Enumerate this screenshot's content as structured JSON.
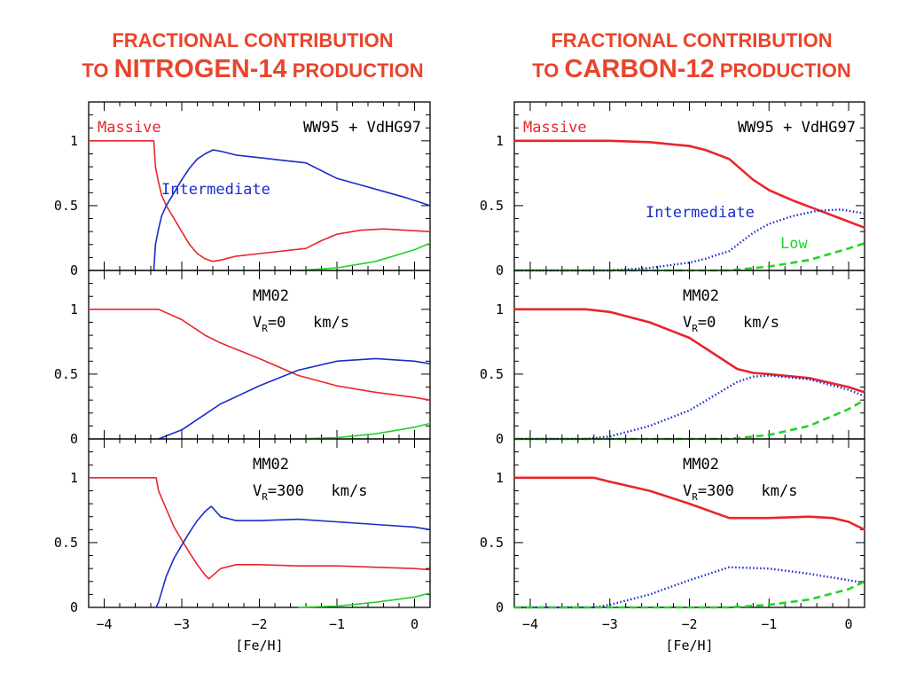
{
  "titles": [
    {
      "line1": "FRACTIONAL CONTRIBUTION",
      "line2_prefix": "TO ",
      "line2_emph": "NITROGEN-14",
      "line2_suffix": " PRODUCTION"
    },
    {
      "line1": "FRACTIONAL CONTRIBUTION",
      "line2_prefix": "TO ",
      "line2_emph": "CARBON-12",
      "line2_suffix": " PRODUCTION"
    }
  ],
  "colors": {
    "massive": "#e8262c",
    "intermediate": "#1a2cc8",
    "low": "#22d322",
    "title": "#e8452c"
  },
  "chart_data": [
    {
      "type": "line",
      "column": "N14",
      "row": 0,
      "xlabel": "[Fe/H]",
      "xlim": [
        -4.2,
        0.2
      ],
      "ylim": [
        0,
        1.3
      ],
      "xticks": [
        -4,
        -3,
        -2,
        -1,
        0
      ],
      "yticks": [
        0,
        0.5,
        1
      ],
      "model_label": "WW95 + VdHG97",
      "model_sub": "",
      "model_unit": "",
      "series": [
        {
          "name": "Massive",
          "label": "Massive",
          "label_pos": "top-left",
          "style": "solid",
          "x": [
            -4.2,
            -3.36,
            -3.34,
            -3.3,
            -3.26,
            -3.2,
            -3.1,
            -3.0,
            -2.9,
            -2.8,
            -2.7,
            -2.6,
            -2.5,
            -2.3,
            -2.0,
            -1.7,
            -1.4,
            -1.2,
            -1.0,
            -0.7,
            -0.4,
            -0.1,
            0.2
          ],
          "y": [
            1.0,
            1.0,
            0.8,
            0.68,
            0.58,
            0.5,
            0.4,
            0.3,
            0.2,
            0.13,
            0.09,
            0.07,
            0.08,
            0.11,
            0.13,
            0.15,
            0.17,
            0.23,
            0.28,
            0.31,
            0.32,
            0.31,
            0.3
          ]
        },
        {
          "name": "Intermediate",
          "label": "Intermediate",
          "label_pos": "mid",
          "style": "solid",
          "x": [
            -3.36,
            -3.34,
            -3.3,
            -3.26,
            -3.2,
            -3.1,
            -3.0,
            -2.9,
            -2.8,
            -2.7,
            -2.6,
            -2.5,
            -2.3,
            -2.0,
            -1.7,
            -1.4,
            -1.2,
            -1.0,
            -0.7,
            -0.4,
            -0.1,
            0.2
          ],
          "y": [
            0.0,
            0.2,
            0.32,
            0.42,
            0.5,
            0.6,
            0.7,
            0.79,
            0.86,
            0.9,
            0.93,
            0.92,
            0.89,
            0.87,
            0.85,
            0.83,
            0.77,
            0.71,
            0.66,
            0.61,
            0.56,
            0.5
          ]
        },
        {
          "name": "Low",
          "label": "",
          "label_pos": "",
          "style": "solid",
          "x": [
            -1.5,
            -1.0,
            -0.5,
            0.0,
            0.2
          ],
          "y": [
            0.0,
            0.02,
            0.07,
            0.16,
            0.21
          ]
        }
      ]
    },
    {
      "type": "line",
      "column": "N14",
      "row": 1,
      "xlabel": "[Fe/H]",
      "xlim": [
        -4.2,
        0.2
      ],
      "ylim": [
        0,
        1.3
      ],
      "xticks": [
        -4,
        -3,
        -2,
        -1,
        0
      ],
      "yticks": [
        0,
        0.5,
        1
      ],
      "model_label": "MM02",
      "model_sub": "R",
      "model_unit": "=0   km/s",
      "series": [
        {
          "name": "Massive",
          "label": "",
          "label_pos": "",
          "style": "solid",
          "x": [
            -4.2,
            -3.3,
            -3.0,
            -2.7,
            -2.5,
            -2.0,
            -1.5,
            -1.0,
            -0.5,
            0.0,
            0.2
          ],
          "y": [
            1.0,
            1.0,
            0.92,
            0.8,
            0.74,
            0.62,
            0.49,
            0.41,
            0.36,
            0.32,
            0.3
          ]
        },
        {
          "name": "Intermediate",
          "label": "",
          "label_pos": "",
          "style": "solid",
          "x": [
            -3.3,
            -3.0,
            -2.7,
            -2.5,
            -2.0,
            -1.5,
            -1.0,
            -0.5,
            0.0,
            0.2
          ],
          "y": [
            0.0,
            0.07,
            0.19,
            0.27,
            0.41,
            0.53,
            0.6,
            0.62,
            0.6,
            0.58
          ]
        },
        {
          "name": "Low",
          "label": "",
          "label_pos": "",
          "style": "solid",
          "x": [
            -1.5,
            -1.0,
            -0.5,
            0.0,
            0.2
          ],
          "y": [
            0.0,
            0.01,
            0.04,
            0.09,
            0.12
          ]
        }
      ]
    },
    {
      "type": "line",
      "column": "N14",
      "row": 2,
      "xlabel": "[Fe/H]",
      "xlim": [
        -4.2,
        0.2
      ],
      "ylim": [
        0,
        1.3
      ],
      "xticks": [
        -4,
        -3,
        -2,
        -1,
        0
      ],
      "yticks": [
        0,
        0.5,
        1
      ],
      "model_label": "MM02",
      "model_sub": "R",
      "model_unit": "=300   km/s",
      "series": [
        {
          "name": "Massive",
          "label": "",
          "label_pos": "",
          "style": "solid",
          "x": [
            -4.2,
            -3.33,
            -3.3,
            -3.2,
            -3.1,
            -3.0,
            -2.9,
            -2.8,
            -2.7,
            -2.65,
            -2.5,
            -2.3,
            -2.0,
            -1.5,
            -1.0,
            -0.5,
            0.0,
            0.2
          ],
          "y": [
            1.0,
            1.0,
            0.9,
            0.76,
            0.62,
            0.52,
            0.42,
            0.33,
            0.25,
            0.22,
            0.3,
            0.33,
            0.33,
            0.32,
            0.32,
            0.31,
            0.3,
            0.29
          ]
        },
        {
          "name": "Intermediate",
          "label": "",
          "label_pos": "",
          "style": "solid",
          "x": [
            -3.33,
            -3.3,
            -3.2,
            -3.1,
            -3.0,
            -2.9,
            -2.8,
            -2.7,
            -2.62,
            -2.5,
            -2.3,
            -2.0,
            -1.5,
            -1.0,
            -0.5,
            0.0,
            0.2
          ],
          "y": [
            0.0,
            0.04,
            0.24,
            0.38,
            0.48,
            0.58,
            0.67,
            0.74,
            0.78,
            0.7,
            0.67,
            0.67,
            0.68,
            0.66,
            0.64,
            0.62,
            0.6
          ]
        },
        {
          "name": "Low",
          "label": "",
          "label_pos": "",
          "style": "solid",
          "x": [
            -1.5,
            -1.0,
            -0.5,
            0.0,
            0.2
          ],
          "y": [
            0.0,
            0.01,
            0.04,
            0.08,
            0.11
          ]
        }
      ]
    },
    {
      "type": "line",
      "column": "C12",
      "row": 0,
      "xlabel": "[Fe/H]",
      "xlim": [
        -4.2,
        0.2
      ],
      "ylim": [
        0,
        1.3
      ],
      "xticks": [
        -4,
        -3,
        -2,
        -1,
        0
      ],
      "yticks": [
        0,
        0.5,
        1
      ],
      "model_label": "WW95 + VdHG97",
      "model_sub": "",
      "model_unit": "",
      "series": [
        {
          "name": "Massive",
          "label": "Massive",
          "label_pos": "top-left",
          "style": "solid",
          "x": [
            -4.2,
            -3.0,
            -2.5,
            -2.0,
            -1.8,
            -1.5,
            -1.2,
            -1.0,
            -0.7,
            -0.4,
            -0.1,
            0.2
          ],
          "y": [
            1.0,
            1.0,
            0.99,
            0.96,
            0.93,
            0.86,
            0.7,
            0.62,
            0.54,
            0.47,
            0.4,
            0.33
          ]
        },
        {
          "name": "Intermediate",
          "label": "Intermediate",
          "label_pos": "mid",
          "style": "dotted",
          "x": [
            -4.2,
            -3.0,
            -2.5,
            -2.0,
            -1.8,
            -1.5,
            -1.2,
            -1.0,
            -0.7,
            -0.4,
            -0.1,
            0.2
          ],
          "y": [
            0.0,
            0.0,
            0.02,
            0.06,
            0.09,
            0.15,
            0.29,
            0.36,
            0.42,
            0.46,
            0.47,
            0.44
          ]
        },
        {
          "name": "Low",
          "label": "Low",
          "label_pos": "lower-right",
          "style": "dashed",
          "x": [
            -4.2,
            -1.5,
            -1.0,
            -0.5,
            0.0,
            0.2
          ],
          "y": [
            0.0,
            0.0,
            0.03,
            0.08,
            0.17,
            0.21
          ]
        }
      ]
    },
    {
      "type": "line",
      "column": "C12",
      "row": 1,
      "xlabel": "[Fe/H]",
      "xlim": [
        -4.2,
        0.2
      ],
      "ylim": [
        0,
        1.3
      ],
      "xticks": [
        -4,
        -3,
        -2,
        -1,
        0
      ],
      "yticks": [
        0,
        0.5,
        1
      ],
      "model_label": "MM02",
      "model_sub": "R",
      "model_unit": "=0   km/s",
      "series": [
        {
          "name": "Massive",
          "label": "",
          "label_pos": "",
          "style": "solid",
          "x": [
            -4.2,
            -3.3,
            -3.0,
            -2.5,
            -2.0,
            -1.7,
            -1.4,
            -1.2,
            -1.0,
            -0.5,
            0.0,
            0.2
          ],
          "y": [
            1.0,
            1.0,
            0.98,
            0.9,
            0.78,
            0.66,
            0.54,
            0.51,
            0.5,
            0.47,
            0.4,
            0.36
          ]
        },
        {
          "name": "Intermediate",
          "label": "",
          "label_pos": "",
          "style": "dotted",
          "x": [
            -4.2,
            -3.3,
            -3.0,
            -2.5,
            -2.0,
            -1.7,
            -1.4,
            -1.2,
            -1.0,
            -0.5,
            0.0,
            0.2
          ],
          "y": [
            0.0,
            0.0,
            0.02,
            0.1,
            0.22,
            0.33,
            0.44,
            0.48,
            0.49,
            0.46,
            0.38,
            0.33
          ]
        },
        {
          "name": "Low",
          "label": "",
          "label_pos": "",
          "style": "dashed",
          "x": [
            -4.2,
            -1.5,
            -1.0,
            -0.5,
            0.0,
            0.2
          ],
          "y": [
            0.0,
            0.0,
            0.03,
            0.1,
            0.23,
            0.3
          ]
        }
      ]
    },
    {
      "type": "line",
      "column": "C12",
      "row": 2,
      "xlabel": "[Fe/H]",
      "xlim": [
        -4.2,
        0.2
      ],
      "ylim": [
        0,
        1.3
      ],
      "xticks": [
        -4,
        -3,
        -2,
        -1,
        0
      ],
      "yticks": [
        0,
        0.5,
        1
      ],
      "model_label": "MM02",
      "model_sub": "R",
      "model_unit": "=300   km/s",
      "series": [
        {
          "name": "Massive",
          "label": "",
          "label_pos": "",
          "style": "solid",
          "x": [
            -4.2,
            -3.2,
            -3.0,
            -2.5,
            -2.0,
            -1.5,
            -1.0,
            -0.5,
            -0.2,
            0.0,
            0.2
          ],
          "y": [
            1.0,
            1.0,
            0.97,
            0.9,
            0.8,
            0.69,
            0.69,
            0.7,
            0.69,
            0.66,
            0.6
          ]
        },
        {
          "name": "Intermediate",
          "label": "",
          "label_pos": "",
          "style": "dotted",
          "x": [
            -4.2,
            -3.2,
            -3.0,
            -2.5,
            -2.0,
            -1.5,
            -1.0,
            -0.5,
            0.0,
            0.2
          ],
          "y": [
            0.0,
            0.0,
            0.02,
            0.1,
            0.21,
            0.31,
            0.3,
            0.26,
            0.21,
            0.19
          ]
        },
        {
          "name": "Low",
          "label": "",
          "label_pos": "",
          "style": "dashed",
          "x": [
            -4.2,
            -1.5,
            -1.0,
            -0.5,
            0.0,
            0.2
          ],
          "y": [
            0.0,
            0.0,
            0.02,
            0.06,
            0.14,
            0.2
          ]
        }
      ]
    }
  ]
}
